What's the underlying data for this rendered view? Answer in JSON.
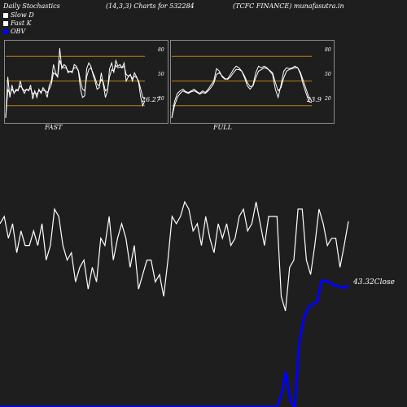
{
  "header": {
    "title": "Daily Stochastics",
    "params": "(14,3,3) Charts for 532284",
    "symbol": "(TCFC FINANCE) munafasutra.in"
  },
  "legend": {
    "items": [
      "Slow  D",
      "Fast K",
      "OBV"
    ]
  },
  "colors": {
    "background": "#1e1e1e",
    "line": "#ffffff",
    "level_line": "#b8860b",
    "obv": "#0000ff",
    "panel_border": "#8a8a8a"
  },
  "chart_data": [
    {
      "type": "line",
      "title": "FAST",
      "levels": [
        80,
        50,
        20
      ],
      "level_labels": [
        "80",
        "50",
        "20"
      ],
      "ylim": [
        0,
        100
      ],
      "last_value_label": "26.27",
      "series": [
        {
          "values": [
            5,
            55,
            30,
            45,
            35,
            40,
            38,
            50,
            40,
            35,
            40,
            38,
            45,
            28,
            38,
            30,
            40,
            35,
            42,
            38,
            30,
            45,
            50,
            70,
            60,
            55,
            90,
            65,
            70,
            68,
            60,
            62,
            60,
            70,
            68,
            62,
            40,
            30,
            32,
            65,
            72,
            68,
            58,
            50,
            40,
            42,
            60,
            45,
            30,
            38,
            65,
            72,
            60,
            75,
            68,
            70,
            66,
            72,
            50,
            55,
            58,
            50,
            60,
            55,
            48,
            30,
            20,
            26.27
          ]
        },
        {
          "values": [
            5,
            40,
            34,
            40,
            36,
            38,
            40,
            44,
            41,
            38,
            40,
            39,
            41,
            34,
            36,
            34,
            38,
            37,
            39,
            38,
            36,
            40,
            46,
            60,
            58,
            55,
            75,
            68,
            66,
            66,
            62,
            61,
            62,
            66,
            66,
            63,
            50,
            40,
            38,
            55,
            64,
            66,
            60,
            54,
            46,
            44,
            52,
            48,
            38,
            40,
            55,
            64,
            62,
            69,
            66,
            67,
            66,
            68,
            58,
            56,
            57,
            53,
            56,
            54,
            50,
            40,
            30,
            28
          ]
        }
      ]
    },
    {
      "type": "line",
      "title": "FULL",
      "levels": [
        80,
        50,
        20
      ],
      "level_labels": [
        "80",
        "50",
        "20"
      ],
      "ylim": [
        0,
        100
      ],
      "last_value_label": "23.9",
      "series": [
        {
          "values": [
            5,
            25,
            35,
            38,
            40,
            37,
            36,
            38,
            40,
            37,
            35,
            38,
            36,
            40,
            45,
            50,
            65,
            62,
            55,
            52,
            53,
            58,
            64,
            68,
            66,
            62,
            54,
            44,
            40,
            45,
            60,
            68,
            66,
            68,
            66,
            62,
            58,
            40,
            30,
            45,
            62,
            66,
            65,
            66,
            68,
            66,
            58,
            45,
            35,
            25,
            23.9
          ]
        },
        {
          "values": [
            5,
            20,
            30,
            35,
            38,
            36,
            35,
            37,
            38,
            36,
            34,
            36,
            35,
            38,
            42,
            47,
            58,
            60,
            56,
            53,
            52,
            55,
            60,
            64,
            64,
            62,
            56,
            48,
            43,
            44,
            54,
            62,
            64,
            66,
            65,
            63,
            60,
            48,
            38,
            42,
            54,
            62,
            64,
            65,
            66,
            66,
            60,
            50,
            40,
            30,
            26
          ]
        }
      ]
    },
    {
      "type": "line",
      "series": [
        {
          "values": [
            43,
            44,
            41,
            43,
            39,
            42,
            40,
            40,
            42,
            40,
            43,
            38,
            40,
            45,
            44,
            40,
            38,
            39,
            35,
            37,
            38,
            34,
            37,
            35,
            41,
            40,
            44,
            38,
            41,
            43,
            41,
            37,
            40,
            34,
            36,
            38,
            38,
            35,
            36,
            33,
            38,
            44,
            43,
            44,
            46,
            45,
            42,
            43,
            40,
            44,
            41,
            39,
            43,
            41,
            43,
            40,
            41,
            44,
            45,
            42,
            43,
            46,
            43,
            40,
            44,
            44,
            44,
            33,
            31,
            37,
            38,
            45,
            45,
            38,
            36,
            40,
            45,
            43,
            40,
            41,
            41,
            37,
            40,
            43.32
          ]
        },
        {
          "values": [
            0,
            0,
            0,
            0,
            0,
            0,
            0,
            0,
            0,
            0,
            0,
            0,
            0,
            0,
            0,
            0,
            0,
            0,
            0,
            0,
            0,
            0,
            0,
            0,
            0,
            0,
            0,
            0,
            0,
            0,
            0,
            0,
            0,
            0,
            0,
            0,
            0,
            0,
            0,
            0,
            0,
            0,
            0,
            0,
            0,
            0,
            0,
            0,
            0,
            0,
            0,
            0,
            0,
            0,
            0,
            0,
            0,
            0,
            0,
            0,
            0,
            0,
            0,
            10,
            30,
            5,
            0,
            55,
            75,
            85,
            88,
            90,
            108,
            108,
            106,
            104,
            103,
            102,
            104
          ]
        }
      ],
      "last_value_label": "43.32Close"
    }
  ]
}
